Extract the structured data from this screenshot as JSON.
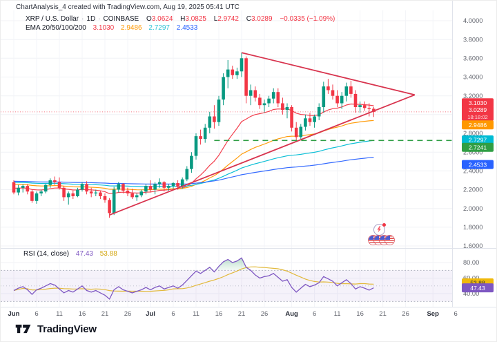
{
  "header": {
    "title": "ChartAnalysis_4 created with TradingView.com, Aug 19, 2025 05:41 UTC",
    "symbol": {
      "name": "XRP / U.S. Dollar",
      "sep": "·",
      "interval": "1D",
      "exchange": "COINBASE",
      "o_label": "O",
      "o_value": "3.0624",
      "h_label": "H",
      "h_value": "3.0825",
      "l_label": "L",
      "l_value": "2.9742",
      "c_label": "C",
      "c_value": "3.0289",
      "change": "−0.0335 (−1.09%)"
    },
    "ema_legend": {
      "label": "EMA 20/50/100/200",
      "ema20": "3.1030",
      "ema50": "2.9486",
      "ema100": "2.7297",
      "ema200": "2.4533"
    }
  },
  "rsi_pane": {
    "label": "RSI (14, close)",
    "value": "47.43",
    "ma_value": "53.88"
  },
  "logo": {
    "brand": "TradingView"
  },
  "stickers": {
    "lightning": "lightning-bolt-badge",
    "flags": "four-us-flag-circles"
  },
  "colors": {
    "up": "#089981",
    "down": "#f23645",
    "ema20": "#f23645",
    "ema50": "#ff9800",
    "ema100": "#00bcd4",
    "ema200": "#2962ff",
    "trendline": "#d8344e",
    "level": "#2f9e44",
    "rsi": "#7e57c2",
    "rsi_ma": "#e2b93b",
    "grid_h": "#f0f2f6",
    "grid_v": "#f3f4f8",
    "divider": "#e0e3eb",
    "axis_text": "#62656e",
    "axis_text_major": "#2a2e39"
  },
  "chart_data": {
    "type": "candlestick",
    "symbol": "XRP/USD",
    "interval": "1D",
    "exchange": "COINBASE",
    "start_date": "2025-06-01",
    "end_date": "2025-08-19",
    "price_axis": {
      "ticks": [
        {
          "label": "4.0000",
          "value": 4.0
        },
        {
          "label": "3.8000",
          "value": 3.8
        },
        {
          "label": "3.6000",
          "value": 3.6
        },
        {
          "label": "3.4000",
          "value": 3.4
        },
        {
          "label": "3.2000",
          "value": 3.2
        },
        {
          "label": "2.8000",
          "value": 2.8
        },
        {
          "label": "2.6000",
          "value": 2.6
        },
        {
          "label": "2.4000",
          "value": 2.4
        },
        {
          "label": "2.2000",
          "value": 2.2
        },
        {
          "label": "2.0000",
          "value": 2.0
        },
        {
          "label": "1.8000",
          "value": 1.8
        },
        {
          "label": "1.6000",
          "value": 1.6
        }
      ],
      "grid_min": 1.6,
      "grid_max": 4.0,
      "grid_step": 0.2
    },
    "time_axis": {
      "ticks": [
        {
          "label": "Jun",
          "day": 0,
          "major": true
        },
        {
          "label": "6",
          "day": 5,
          "major": false
        },
        {
          "label": "11",
          "day": 10,
          "major": false
        },
        {
          "label": "16",
          "day": 15,
          "major": false
        },
        {
          "label": "21",
          "day": 20,
          "major": false
        },
        {
          "label": "26",
          "day": 25,
          "major": false
        },
        {
          "label": "Jul",
          "day": 30,
          "major": true
        },
        {
          "label": "6",
          "day": 35,
          "major": false
        },
        {
          "label": "11",
          "day": 40,
          "major": false
        },
        {
          "label": "16",
          "day": 45,
          "major": false
        },
        {
          "label": "21",
          "day": 50,
          "major": false
        },
        {
          "label": "26",
          "day": 55,
          "major": false
        },
        {
          "label": "Aug",
          "day": 61,
          "major": true
        },
        {
          "label": "6",
          "day": 66,
          "major": false
        },
        {
          "label": "11",
          "day": 71,
          "major": false
        },
        {
          "label": "16",
          "day": 76,
          "major": false
        },
        {
          "label": "21",
          "day": 81,
          "major": false
        },
        {
          "label": "26",
          "day": 86,
          "major": false
        },
        {
          "label": "Sep",
          "day": 92,
          "major": true
        },
        {
          "label": "6",
          "day": 97,
          "major": false
        }
      ]
    },
    "ohlc": [
      [
        2.28,
        2.3,
        2.15,
        2.17
      ],
      [
        2.17,
        2.25,
        2.14,
        2.22
      ],
      [
        2.22,
        2.26,
        2.17,
        2.24
      ],
      [
        2.24,
        2.26,
        2.15,
        2.18
      ],
      [
        2.18,
        2.2,
        2.06,
        2.08
      ],
      [
        2.08,
        2.18,
        2.05,
        2.16
      ],
      [
        2.16,
        2.2,
        2.13,
        2.18
      ],
      [
        2.18,
        2.26,
        2.16,
        2.25
      ],
      [
        2.25,
        2.32,
        2.22,
        2.3
      ],
      [
        2.3,
        2.34,
        2.25,
        2.28
      ],
      [
        2.28,
        2.33,
        2.2,
        2.22
      ],
      [
        2.22,
        2.24,
        2.08,
        2.12
      ],
      [
        2.12,
        2.18,
        2.04,
        2.16
      ],
      [
        2.16,
        2.19,
        2.1,
        2.13
      ],
      [
        2.13,
        2.22,
        2.12,
        2.2
      ],
      [
        2.2,
        2.28,
        2.18,
        2.26
      ],
      [
        2.26,
        2.29,
        2.15,
        2.18
      ],
      [
        2.18,
        2.22,
        2.12,
        2.16
      ],
      [
        2.16,
        2.2,
        2.13,
        2.17
      ],
      [
        2.17,
        2.19,
        2.1,
        2.13
      ],
      [
        2.13,
        2.16,
        2.06,
        2.09
      ],
      [
        2.09,
        2.11,
        1.9,
        1.95
      ],
      [
        1.95,
        2.23,
        1.93,
        2.2
      ],
      [
        2.2,
        2.28,
        2.17,
        2.26
      ],
      [
        2.26,
        2.27,
        2.16,
        2.19
      ],
      [
        2.19,
        2.22,
        2.13,
        2.16
      ],
      [
        2.16,
        2.21,
        2.1,
        2.12
      ],
      [
        2.12,
        2.16,
        2.08,
        2.14
      ],
      [
        2.14,
        2.2,
        2.12,
        2.18
      ],
      [
        2.18,
        2.26,
        2.15,
        2.24
      ],
      [
        2.24,
        2.3,
        2.17,
        2.2
      ],
      [
        2.2,
        2.28,
        2.15,
        2.26
      ],
      [
        2.26,
        2.32,
        2.22,
        2.28
      ],
      [
        2.28,
        2.29,
        2.18,
        2.22
      ],
      [
        2.22,
        2.26,
        2.19,
        2.24
      ],
      [
        2.24,
        2.28,
        2.21,
        2.27
      ],
      [
        2.27,
        2.3,
        2.2,
        2.23
      ],
      [
        2.23,
        2.33,
        2.21,
        2.31
      ],
      [
        2.31,
        2.45,
        2.29,
        2.42
      ],
      [
        2.42,
        2.6,
        2.38,
        2.56
      ],
      [
        2.56,
        2.8,
        2.52,
        2.77
      ],
      [
        2.77,
        2.84,
        2.68,
        2.74
      ],
      [
        2.74,
        2.9,
        2.7,
        2.86
      ],
      [
        2.86,
        3.03,
        2.8,
        2.98
      ],
      [
        2.98,
        3.1,
        2.85,
        2.92
      ],
      [
        2.92,
        3.2,
        2.88,
        3.16
      ],
      [
        3.16,
        3.44,
        3.1,
        3.4
      ],
      [
        3.4,
        3.58,
        3.28,
        3.48
      ],
      [
        3.48,
        3.52,
        3.38,
        3.42
      ],
      [
        3.42,
        3.5,
        3.38,
        3.46
      ],
      [
        3.46,
        3.66,
        3.4,
        3.6
      ],
      [
        3.6,
        3.62,
        3.12,
        3.2
      ],
      [
        3.2,
        3.32,
        3.1,
        3.26
      ],
      [
        3.26,
        3.3,
        3.14,
        3.18
      ],
      [
        3.18,
        3.22,
        3.06,
        3.1
      ],
      [
        3.1,
        3.16,
        3.02,
        3.12
      ],
      [
        3.12,
        3.2,
        3.08,
        3.17
      ],
      [
        3.17,
        3.28,
        3.12,
        3.24
      ],
      [
        3.24,
        3.28,
        3.08,
        3.12
      ],
      [
        3.12,
        3.18,
        3.0,
        3.05
      ],
      [
        3.05,
        3.12,
        2.96,
        3.08
      ],
      [
        3.08,
        3.1,
        2.82,
        2.86
      ],
      [
        2.86,
        2.92,
        2.72,
        2.76
      ],
      [
        2.76,
        2.9,
        2.74,
        2.87
      ],
      [
        2.87,
        3.0,
        2.83,
        2.96
      ],
      [
        2.96,
        3.02,
        2.88,
        2.92
      ],
      [
        2.92,
        3.0,
        2.86,
        2.98
      ],
      [
        2.98,
        3.12,
        2.94,
        3.08
      ],
      [
        3.08,
        3.35,
        3.02,
        3.3
      ],
      [
        3.3,
        3.38,
        3.22,
        3.26
      ],
      [
        3.26,
        3.32,
        3.16,
        3.2
      ],
      [
        3.2,
        3.26,
        3.08,
        3.12
      ],
      [
        3.12,
        3.24,
        3.06,
        3.2
      ],
      [
        3.2,
        3.34,
        3.14,
        3.3
      ],
      [
        3.3,
        3.36,
        3.18,
        3.22
      ],
      [
        3.22,
        3.26,
        3.02,
        3.08
      ],
      [
        3.08,
        3.14,
        3.02,
        3.1
      ],
      [
        3.1,
        3.14,
        3.04,
        3.07
      ],
      [
        3.07,
        3.12,
        2.98,
        3.06
      ],
      [
        3.0624,
        3.0825,
        2.9742,
        3.0289
      ]
    ],
    "emas": [
      {
        "period": 20,
        "seed": 2.22,
        "color_key": "ema20",
        "last_label": "3.1030"
      },
      {
        "period": 50,
        "seed": 2.26,
        "color_key": "ema50",
        "last_label": "2.9486"
      },
      {
        "period": 100,
        "seed": 2.28,
        "color_key": "ema100",
        "last_label": "2.7297"
      },
      {
        "period": 200,
        "seed": 2.29,
        "color_key": "ema200",
        "last_label": "2.4533"
      }
    ],
    "trendlines": [
      {
        "name": "upper-triangle-line",
        "from_day": 50,
        "from_price": 3.66,
        "to_day": 88,
        "to_price": 3.21
      },
      {
        "name": "lower-triangle-line",
        "from_day": 21,
        "from_price": 1.93,
        "to_day": 88,
        "to_price": 3.21
      }
    ],
    "support_level": {
      "price": 2.7241,
      "from_day": 44,
      "label": "2.7241",
      "style": "dashed"
    },
    "current_price": {
      "value": 3.0289,
      "label": "3.0289",
      "countdown": "18:18:02",
      "direction": "down"
    },
    "price_badges": [
      {
        "key": "ema20",
        "label": "3.1030",
        "value": 3.103,
        "bg": "#f23645",
        "fg": "#ffffff"
      },
      {
        "key": "price",
        "label": "3.0289",
        "value": 3.0289,
        "bg": "#f23645",
        "fg": "#ffffff",
        "countdown": "18:18:02"
      },
      {
        "key": "ema50",
        "label": "2.9486",
        "value": 2.9486,
        "bg": "#ff9800",
        "fg": "#ffffff"
      },
      {
        "key": "ema100",
        "label": "2.7297",
        "value": 2.7297,
        "bg": "#00bcd4",
        "fg": "#ffffff"
      },
      {
        "key": "level",
        "label": "2.7241",
        "value": 2.7241,
        "bg": "#2f9e44",
        "fg": "#ffffff"
      },
      {
        "key": "ema200",
        "label": "2.4533",
        "value": 2.4533,
        "bg": "#2962ff",
        "fg": "#ffffff"
      }
    ],
    "rsi": {
      "period": 14,
      "source": "close",
      "values": [
        44,
        47,
        49,
        45,
        39,
        45,
        47,
        50,
        53,
        51,
        46,
        41,
        44,
        42,
        46,
        50,
        44,
        42,
        44,
        41,
        38,
        33,
        45,
        49,
        45,
        43,
        41,
        43,
        45,
        48,
        45,
        48,
        50,
        46,
        48,
        50,
        47,
        51,
        57,
        63,
        69,
        66,
        70,
        74,
        68,
        75,
        81,
        84,
        80,
        82,
        86,
        74,
        70,
        64,
        60,
        62,
        63,
        66,
        61,
        56,
        58,
        48,
        42,
        47,
        52,
        49,
        51,
        54,
        62,
        59,
        56,
        50,
        54,
        58,
        53,
        46,
        49,
        47,
        44.5,
        47.43
      ],
      "ma_period": 14,
      "upper_band": 70,
      "lower_band": 30,
      "middle": 50,
      "axis_ticks": [
        {
          "label": "80.00",
          "value": 80
        },
        {
          "label": "60.00",
          "value": 60
        },
        {
          "label": "40.00",
          "value": 40
        }
      ],
      "badges": [
        {
          "label": "53.88",
          "value": 53.88,
          "bg": "#f0b90b",
          "fg": "#2a2e39"
        },
        {
          "label": "47.43",
          "value": 47.43,
          "bg": "#7e57c2",
          "fg": "#ffffff"
        }
      ]
    }
  }
}
